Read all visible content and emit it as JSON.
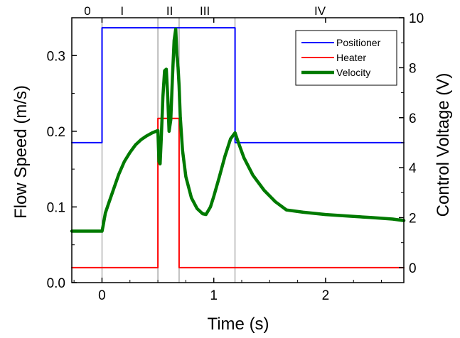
{
  "chart_data": {
    "type": "line",
    "title": "",
    "xlabel": "Time (s)",
    "ylabel_left": "Flow Speed (m/s)",
    "ylabel_right": "Control Voltage (V)",
    "xlim": [
      -0.27,
      2.7
    ],
    "ylim_left": [
      0.0,
      0.35
    ],
    "ylim_right": [
      -0.6,
      10.0
    ],
    "x_ticks": [
      0,
      1,
      2
    ],
    "x_tick_labels": [
      "0",
      "1",
      "2"
    ],
    "y_left_ticks": [
      0.0,
      0.1,
      0.2,
      0.3
    ],
    "y_left_tick_labels": [
      "0.0",
      "0.1",
      "0.2",
      "0.3"
    ],
    "y_right_ticks": [
      0,
      2,
      4,
      6,
      8,
      10
    ],
    "y_right_tick_labels": [
      "0",
      "2",
      "4",
      "6",
      "8",
      "10"
    ],
    "grid": false,
    "legend_position": "top-right",
    "phase_boundaries": [
      0,
      0.5,
      0.69,
      1.19
    ],
    "phases": [
      {
        "label": "0",
        "x": -0.13
      },
      {
        "label": "I",
        "x": 0.18
      },
      {
        "label": "II",
        "x": 0.605
      },
      {
        "label": "III",
        "x": 0.92
      },
      {
        "label": "IV",
        "x": 1.95
      }
    ],
    "series": [
      {
        "name": "Positioner",
        "axis": "right",
        "color": "#0000ff",
        "width": 2,
        "x": [
          -0.27,
          0.0,
          0.0,
          1.19,
          1.19,
          2.7
        ],
        "y": [
          5.0,
          5.0,
          9.6,
          9.6,
          5.0,
          5.0
        ]
      },
      {
        "name": "Heater",
        "axis": "right",
        "color": "#ff0000",
        "width": 2,
        "x": [
          -0.27,
          0.5,
          0.5,
          0.69,
          0.69,
          2.7
        ],
        "y": [
          0.0,
          0.0,
          5.97,
          5.97,
          0.0,
          0.0
        ]
      },
      {
        "name": "Velocity",
        "axis": "left",
        "color": "#007a00",
        "width": 4.5,
        "x": [
          -0.27,
          -0.1,
          0.0,
          0.01,
          0.03,
          0.06,
          0.1,
          0.15,
          0.2,
          0.25,
          0.3,
          0.35,
          0.4,
          0.45,
          0.5,
          0.51,
          0.52,
          0.53,
          0.545,
          0.56,
          0.575,
          0.59,
          0.6,
          0.615,
          0.63,
          0.645,
          0.66,
          0.67,
          0.68,
          0.69,
          0.7,
          0.72,
          0.75,
          0.8,
          0.85,
          0.9,
          0.93,
          0.97,
          1.0,
          1.05,
          1.1,
          1.15,
          1.19,
          1.22,
          1.27,
          1.35,
          1.45,
          1.55,
          1.65,
          1.8,
          2.0,
          2.2,
          2.4,
          2.6,
          2.7
        ],
        "y": [
          0.068,
          0.068,
          0.068,
          0.075,
          0.092,
          0.105,
          0.122,
          0.143,
          0.16,
          0.172,
          0.182,
          0.189,
          0.194,
          0.198,
          0.201,
          0.16,
          0.157,
          0.19,
          0.245,
          0.28,
          0.282,
          0.24,
          0.2,
          0.215,
          0.27,
          0.32,
          0.335,
          0.3,
          0.285,
          0.26,
          0.22,
          0.175,
          0.14,
          0.112,
          0.098,
          0.091,
          0.09,
          0.1,
          0.114,
          0.14,
          0.167,
          0.19,
          0.198,
          0.185,
          0.165,
          0.142,
          0.122,
          0.107,
          0.096,
          0.093,
          0.09,
          0.088,
          0.086,
          0.084,
          0.082
        ]
      }
    ]
  }
}
